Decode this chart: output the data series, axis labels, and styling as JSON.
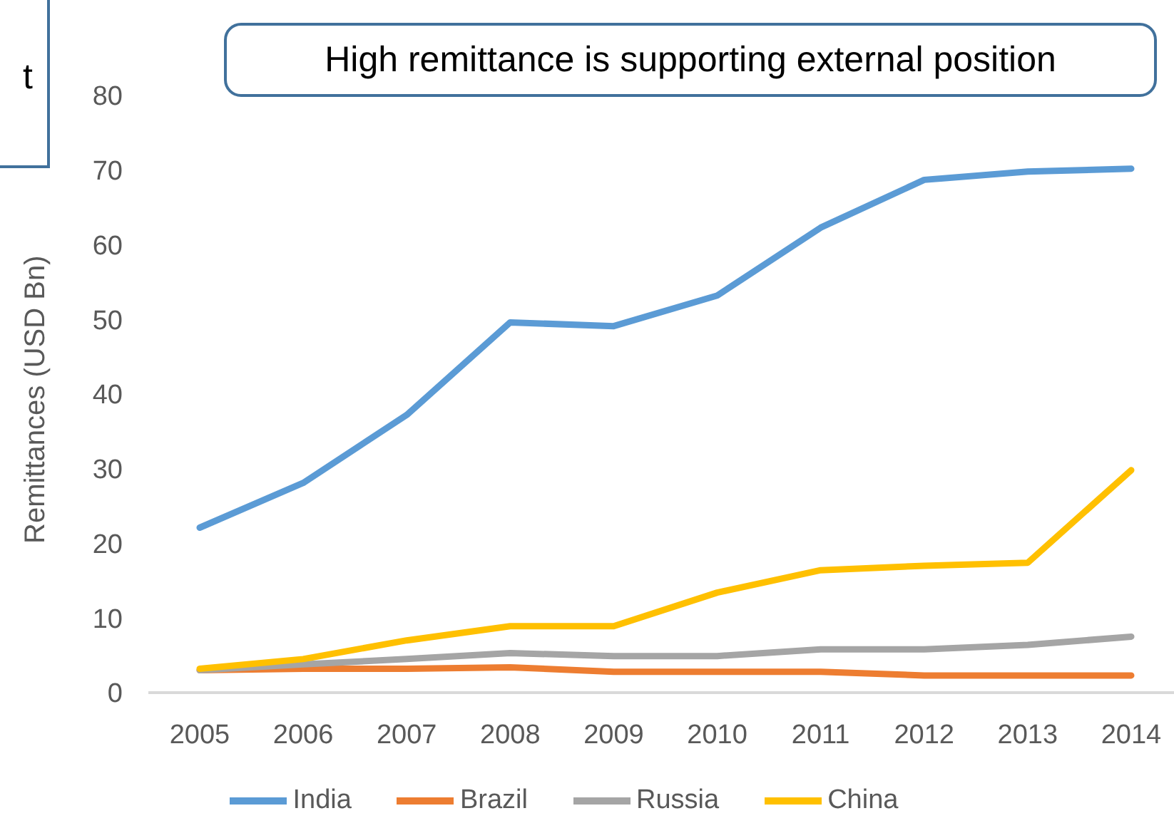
{
  "chart_data": {
    "type": "line",
    "title": "High remittance is supporting external position",
    "ylabel": "Remittances (USD Bn)",
    "annotations": [
      "t"
    ],
    "categories": [
      "2005",
      "2006",
      "2007",
      "2008",
      "2009",
      "2010",
      "2011",
      "2012",
      "2013",
      "2014"
    ],
    "series": [
      {
        "name": "India",
        "color": "#5b9bd5",
        "values": [
          22.1,
          28.1,
          37.2,
          49.6,
          49.1,
          53.2,
          62.3,
          68.7,
          69.8,
          70.2
        ]
      },
      {
        "name": "Brazil",
        "color": "#ed7d31",
        "values": [
          3.0,
          3.2,
          3.2,
          3.4,
          2.8,
          2.8,
          2.8,
          2.3,
          2.3,
          2.3
        ]
      },
      {
        "name": "Russia",
        "color": "#a5a5a5",
        "values": [
          3.0,
          3.8,
          4.5,
          5.3,
          4.9,
          4.9,
          5.8,
          5.8,
          6.4,
          7.5
        ]
      },
      {
        "name": "China",
        "color": "#ffc000",
        "values": [
          3.2,
          4.5,
          7.0,
          8.9,
          8.9,
          13.4,
          16.4,
          17.0,
          17.4,
          29.8
        ]
      }
    ],
    "ylim": [
      0,
      80
    ],
    "yticks": [
      0,
      10,
      20,
      30,
      40,
      50,
      60,
      70,
      80
    ],
    "grid": false,
    "legend": "bottom",
    "marker": "none",
    "line_style": "solid"
  }
}
